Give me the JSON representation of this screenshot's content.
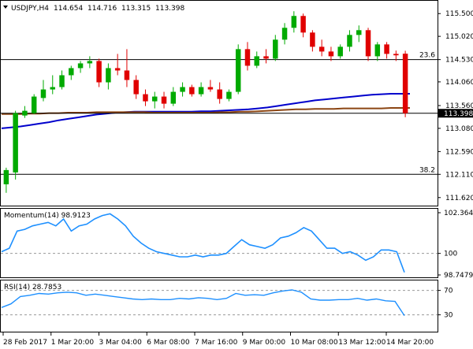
{
  "chart_data": [
    {
      "type": "candlestick",
      "title": "USDJPY,H4",
      "ohlc_header": {
        "open": "114.654",
        "high": "114.716",
        "low": "113.315",
        "close": "113.398"
      },
      "y_ticks": [
        "115.500",
        "115.020",
        "114.530",
        "114.060",
        "113.560",
        "113.080",
        "112.590",
        "112.110",
        "111.620"
      ],
      "ylim": [
        111.5,
        115.72
      ],
      "current_price_label": "113.398",
      "current_price": 113.398,
      "fib_levels": [
        {
          "label": "23.6",
          "value": 114.53
        },
        {
          "label": "38.2",
          "value": 112.11
        }
      ],
      "moving_averages": [
        {
          "color": "#0000cc",
          "values": [
            113.08,
            113.1,
            113.12,
            113.15,
            113.18,
            113.21,
            113.25,
            113.28,
            113.31,
            113.34,
            113.37,
            113.39,
            113.41,
            113.42,
            113.43,
            113.43,
            113.43,
            113.43,
            113.43,
            113.43,
            113.43,
            113.44,
            113.44,
            113.45,
            113.46,
            113.47,
            113.48,
            113.5,
            113.52,
            113.55,
            113.58,
            113.61,
            113.64,
            113.67,
            113.69,
            113.71,
            113.73,
            113.75,
            113.77,
            113.79,
            113.8,
            113.81,
            113.81,
            113.81
          ]
        },
        {
          "color": "#8b4513",
          "values": [
            113.38,
            113.38,
            113.38,
            113.39,
            113.39,
            113.4,
            113.4,
            113.41,
            113.41,
            113.41,
            113.42,
            113.42,
            113.42,
            113.42,
            113.42,
            113.42,
            113.41,
            113.41,
            113.41,
            113.41,
            113.41,
            113.41,
            113.41,
            113.42,
            113.42,
            113.43,
            113.43,
            113.44,
            113.45,
            113.46,
            113.47,
            113.48,
            113.48,
            113.49,
            113.49,
            113.49,
            113.5,
            113.5,
            113.5,
            113.5,
            113.5,
            113.51,
            113.51,
            113.51
          ]
        }
      ],
      "candles": [
        {
          "o": 111.9,
          "h": 112.25,
          "l": 111.72,
          "c": 112.2
        },
        {
          "o": 112.15,
          "h": 113.45,
          "l": 112.0,
          "c": 113.4
        },
        {
          "o": 113.35,
          "h": 113.55,
          "l": 113.3,
          "c": 113.45
        },
        {
          "o": 113.4,
          "h": 113.8,
          "l": 113.38,
          "c": 113.75
        },
        {
          "o": 113.72,
          "h": 114.1,
          "l": 113.65,
          "c": 113.9
        },
        {
          "o": 113.9,
          "h": 114.2,
          "l": 113.8,
          "c": 113.95
        },
        {
          "o": 113.95,
          "h": 114.3,
          "l": 113.9,
          "c": 114.2
        },
        {
          "o": 114.2,
          "h": 114.4,
          "l": 114.1,
          "c": 114.35
        },
        {
          "o": 114.35,
          "h": 114.5,
          "l": 114.25,
          "c": 114.45
        },
        {
          "o": 114.45,
          "h": 114.6,
          "l": 114.35,
          "c": 114.5
        },
        {
          "o": 114.5,
          "h": 114.55,
          "l": 113.95,
          "c": 114.05
        },
        {
          "o": 114.05,
          "h": 114.45,
          "l": 113.9,
          "c": 114.35
        },
        {
          "o": 114.35,
          "h": 114.65,
          "l": 114.2,
          "c": 114.3
        },
        {
          "o": 114.3,
          "h": 114.75,
          "l": 113.95,
          "c": 114.1
        },
        {
          "o": 114.1,
          "h": 114.2,
          "l": 113.7,
          "c": 113.8
        },
        {
          "o": 113.8,
          "h": 113.9,
          "l": 113.55,
          "c": 113.65
        },
        {
          "o": 113.65,
          "h": 113.85,
          "l": 113.5,
          "c": 113.75
        },
        {
          "o": 113.75,
          "h": 113.85,
          "l": 113.5,
          "c": 113.6
        },
        {
          "o": 113.6,
          "h": 113.95,
          "l": 113.55,
          "c": 113.85
        },
        {
          "o": 113.85,
          "h": 114.05,
          "l": 113.75,
          "c": 113.95
        },
        {
          "o": 113.95,
          "h": 114.0,
          "l": 113.75,
          "c": 113.8
        },
        {
          "o": 113.8,
          "h": 114.05,
          "l": 113.75,
          "c": 113.95
        },
        {
          "o": 113.95,
          "h": 114.1,
          "l": 113.85,
          "c": 113.9
        },
        {
          "o": 113.9,
          "h": 114.05,
          "l": 113.6,
          "c": 113.7
        },
        {
          "o": 113.7,
          "h": 113.9,
          "l": 113.65,
          "c": 113.85
        },
        {
          "o": 113.85,
          "h": 114.85,
          "l": 113.8,
          "c": 114.75
        },
        {
          "o": 114.75,
          "h": 114.9,
          "l": 114.3,
          "c": 114.4
        },
        {
          "o": 114.4,
          "h": 114.7,
          "l": 114.35,
          "c": 114.6
        },
        {
          "o": 114.6,
          "h": 114.75,
          "l": 114.45,
          "c": 114.55
        },
        {
          "o": 114.55,
          "h": 115.05,
          "l": 114.5,
          "c": 114.95
        },
        {
          "o": 114.95,
          "h": 115.3,
          "l": 114.85,
          "c": 115.2
        },
        {
          "o": 115.2,
          "h": 115.55,
          "l": 115.1,
          "c": 115.45
        },
        {
          "o": 115.45,
          "h": 115.5,
          "l": 115.0,
          "c": 115.1
        },
        {
          "o": 115.1,
          "h": 115.15,
          "l": 114.7,
          "c": 114.8
        },
        {
          "o": 114.8,
          "h": 114.95,
          "l": 114.6,
          "c": 114.7
        },
        {
          "o": 114.7,
          "h": 114.8,
          "l": 114.5,
          "c": 114.6
        },
        {
          "o": 114.6,
          "h": 114.85,
          "l": 114.55,
          "c": 114.8
        },
        {
          "o": 114.8,
          "h": 115.15,
          "l": 114.7,
          "c": 115.05
        },
        {
          "o": 115.05,
          "h": 115.25,
          "l": 114.9,
          "c": 115.15
        },
        {
          "o": 115.15,
          "h": 115.2,
          "l": 114.5,
          "c": 114.6
        },
        {
          "o": 114.6,
          "h": 114.9,
          "l": 114.5,
          "c": 114.85
        },
        {
          "o": 114.85,
          "h": 114.9,
          "l": 114.55,
          "c": 114.65
        },
        {
          "o": 114.65,
          "h": 114.72,
          "l": 114.5,
          "c": 114.62
        },
        {
          "o": 114.654,
          "h": 114.716,
          "l": 113.315,
          "c": 113.398
        }
      ],
      "x_labels": [
        "28 Feb 2017",
        "1 Mar 20:00",
        "3 Mar 04:00",
        "6 Mar 08:00",
        "7 Mar 16:00",
        "9 Mar 00:00",
        "10 Mar 08:00",
        "13 Mar 12:00",
        "14 Mar 20:00"
      ]
    },
    {
      "type": "line",
      "title": "Momentum(14) 98.9123",
      "y_ticks": [
        "102.3648",
        "100",
        "98.7479"
      ],
      "ylim": [
        98.7479,
        102.3648
      ],
      "reference_level": 100,
      "series": [
        {
          "color": "#1e90ff",
          "values": [
            100.1,
            100.3,
            101.3,
            101.4,
            101.6,
            101.7,
            101.8,
            101.6,
            102.0,
            101.3,
            101.6,
            101.7,
            102.0,
            102.2,
            102.3,
            102.0,
            101.6,
            101.0,
            100.6,
            100.3,
            100.1,
            100.0,
            99.9,
            99.8,
            99.8,
            99.9,
            99.8,
            99.9,
            99.9,
            100.0,
            100.4,
            100.8,
            100.5,
            100.4,
            100.3,
            100.5,
            100.9,
            101.0,
            101.2,
            101.5,
            101.3,
            100.8,
            100.3,
            100.3,
            100.0,
            100.1,
            99.9,
            99.6,
            99.8,
            100.2,
            100.2,
            100.1,
            98.9
          ]
        }
      ]
    },
    {
      "type": "line",
      "title": "RSI(14) 28.7853",
      "y_ticks": [
        "70",
        "30"
      ],
      "ylim": [
        5,
        85
      ],
      "reference_levels": [
        70,
        30
      ],
      "series": [
        {
          "color": "#1e90ff",
          "values": [
            42,
            48,
            60,
            62,
            65,
            64,
            66,
            67,
            66,
            62,
            64,
            62,
            60,
            58,
            56,
            55,
            56,
            55,
            55,
            57,
            56,
            58,
            57,
            55,
            57,
            65,
            62,
            63,
            62,
            66,
            69,
            71,
            67,
            56,
            54,
            54,
            55,
            55,
            57,
            54,
            56,
            53,
            52,
            28.8
          ]
        }
      ]
    }
  ]
}
